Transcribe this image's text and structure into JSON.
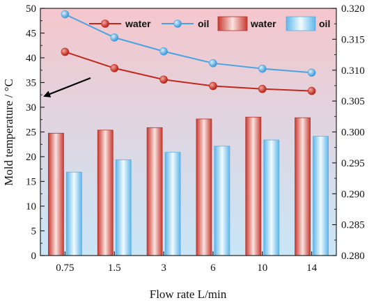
{
  "chart_data": {
    "type": "bar",
    "categories": [
      "0.75",
      "1.5",
      "3",
      "6",
      "10",
      "14"
    ],
    "xlabel": "Flow rate L/min",
    "ylabel": "Mold temperature / °C",
    "ylim": [
      0,
      50
    ],
    "y_ticks": [
      "0",
      "5",
      "10",
      "15",
      "20",
      "25",
      "30",
      "35",
      "40",
      "45",
      "50"
    ],
    "y2lim": [
      0.28,
      0.32
    ],
    "y2_ticks": [
      "0.280",
      "0.285",
      "0.290",
      "0.295",
      "0.300",
      "0.305",
      "0.310",
      "0.315",
      "0.320"
    ],
    "line_series": [
      {
        "name": "water",
        "axis": "left",
        "values": [
          41.2,
          37.9,
          35.6,
          34.3,
          33.7,
          33.3
        ],
        "color": "#c0281c"
      },
      {
        "name": "oil",
        "axis": "left",
        "values": [
          48.8,
          44.1,
          41.3,
          38.9,
          37.8,
          37.0
        ],
        "color": "#4aa3e0"
      }
    ],
    "bar_series": [
      {
        "name": "water",
        "axis": "right",
        "values": [
          0.2998,
          0.3003,
          0.3007,
          0.3021,
          0.3024,
          0.3023
        ],
        "color": "#d9534a"
      },
      {
        "name": "oil",
        "axis": "right",
        "values": [
          0.2935,
          0.2955,
          0.2967,
          0.2977,
          0.2987,
          0.2993
        ],
        "color": "#7ec6ef"
      }
    ],
    "background_gradient": [
      "#f5c6cc",
      "#c8e6f7"
    ],
    "grid": false,
    "legend_position": "top"
  }
}
